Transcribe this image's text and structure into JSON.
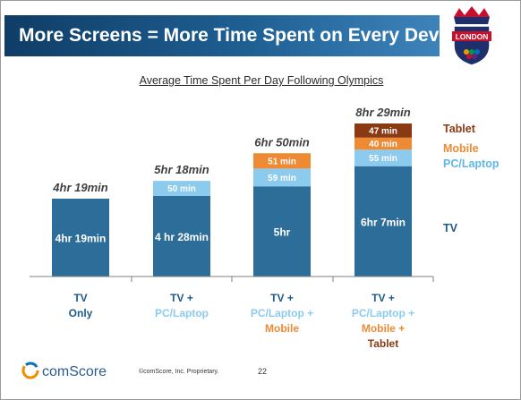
{
  "slide": {
    "title": "More Screens = More Time Spent on Every Device",
    "logo_text": "LONDON",
    "footer_brand": "comScore",
    "footer_text": "©comScore, Inc.   Proprietary.",
    "page_number": "22"
  },
  "chart_data": {
    "type": "bar",
    "stacked": true,
    "title": "Average Time Spent Per Day Following Olympics",
    "unit": "minutes",
    "categories": [
      [
        "TV",
        "Only"
      ],
      [
        "TV +",
        "PC/Laptop"
      ],
      [
        "TV +",
        "PC/Laptop +",
        "Mobile"
      ],
      [
        "TV +",
        "PC/Laptop +",
        "Mobile +",
        "Tablet"
      ]
    ],
    "series": [
      {
        "name": "TV",
        "color": "#2d6d9a",
        "values": [
          259,
          268,
          300,
          367
        ],
        "labels": [
          "4hr 19min",
          "4 hr 28min",
          "5hr",
          "6hr 7min"
        ]
      },
      {
        "name": "PC/Laptop",
        "color": "#8ccbee",
        "values": [
          0,
          50,
          59,
          55
        ],
        "labels": [
          "",
          "50 min",
          "59 min",
          "55 min"
        ]
      },
      {
        "name": "Mobile",
        "color": "#ee8a33",
        "values": [
          0,
          0,
          51,
          40
        ],
        "labels": [
          "",
          "",
          "51 min",
          "40 min"
        ]
      },
      {
        "name": "Tablet",
        "color": "#8a3a12",
        "values": [
          0,
          0,
          0,
          47
        ],
        "labels": [
          "",
          "",
          "",
          "47 min"
        ]
      }
    ],
    "totals": [
      "4hr 19min",
      "5hr 18min",
      "6hr 50min",
      "8hr 29min"
    ],
    "legend_position": "right",
    "ylim": [
      0,
      509
    ],
    "grid": false
  }
}
